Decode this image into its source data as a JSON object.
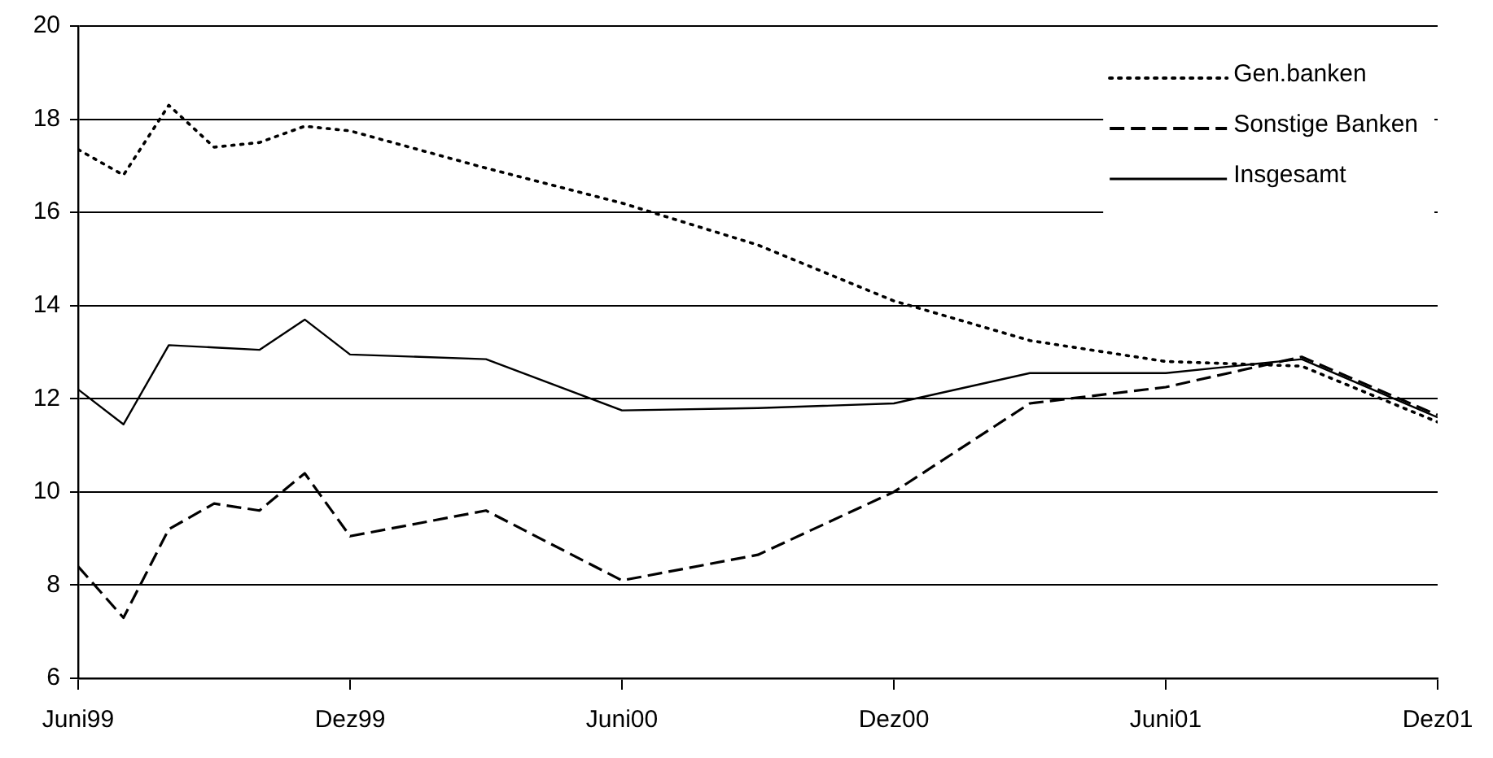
{
  "chart_data": {
    "type": "line",
    "x": [
      "1999-06",
      "1999-07",
      "1999-08",
      "1999-09",
      "1999-10",
      "1999-11",
      "1999-12",
      "2000-03",
      "2000-06",
      "2000-09",
      "2000-12",
      "2001-03",
      "2001-06",
      "2001-09",
      "2001-12"
    ],
    "series": [
      {
        "name": "Gen.banken",
        "color": "#000000",
        "line_style": "dotted",
        "values": [
          17.35,
          16.8,
          18.3,
          17.4,
          17.5,
          17.85,
          17.75,
          16.95,
          16.2,
          15.3,
          14.1,
          13.25,
          12.8,
          12.7,
          11.5
        ]
      },
      {
        "name": "Sonstige Banken",
        "color": "#000000",
        "line_style": "dashed",
        "values": [
          8.4,
          7.3,
          9.2,
          9.75,
          9.6,
          10.4,
          9.05,
          9.6,
          8.1,
          8.65,
          10.0,
          11.9,
          12.25,
          12.9,
          11.65
        ]
      },
      {
        "name": "Insgesamt",
        "color": "#000000",
        "line_style": "solid",
        "values": [
          12.2,
          11.45,
          13.15,
          13.1,
          13.05,
          13.7,
          12.95,
          12.85,
          11.75,
          11.8,
          11.9,
          12.55,
          12.55,
          12.85,
          11.6
        ]
      }
    ],
    "xlim": [
      "1999-06",
      "2001-12"
    ],
    "xticks": [
      {
        "value": "1999-06",
        "label": "Juni99"
      },
      {
        "value": "1999-12",
        "label": "Dez99"
      },
      {
        "value": "2000-06",
        "label": "Juni00"
      },
      {
        "value": "2000-12",
        "label": "Dez00"
      },
      {
        "value": "2001-06",
        "label": "Juni01"
      },
      {
        "value": "2001-12",
        "label": "Dez01"
      }
    ],
    "ylim": [
      6,
      20
    ],
    "yticks": [
      6,
      8,
      10,
      12,
      14,
      16,
      18,
      20
    ],
    "grid": "y",
    "legend": "top right",
    "marker": "none"
  }
}
